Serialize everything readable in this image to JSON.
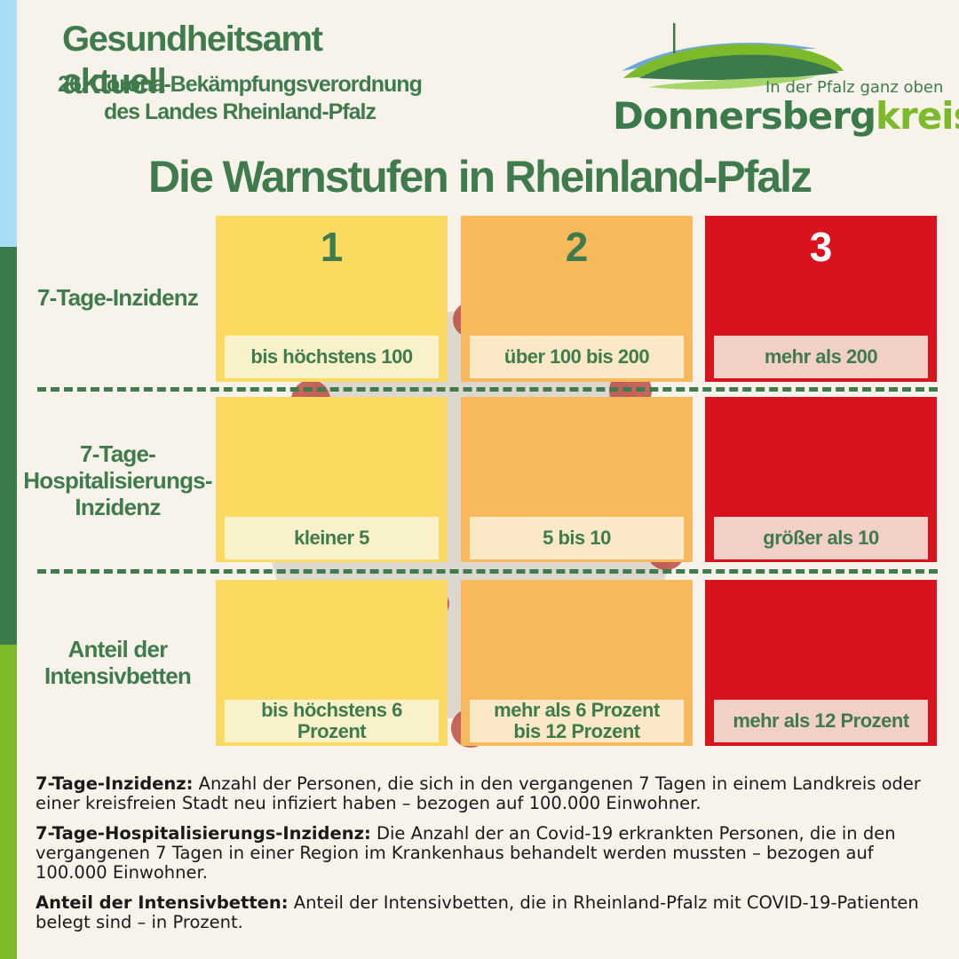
{
  "header": {
    "title": "Gesundheitsamt aktuell",
    "subtitle_line1": "26. Corona-Bekämpfungsverordnung",
    "subtitle_line2": "des Landes Rheinland-Pfalz"
  },
  "logo": {
    "slogan": "In der Pfalz ganz oben",
    "name_part1": "Donnersberg",
    "name_part2": "kreis",
    "colors": {
      "dark_green": "#3b7a4a",
      "light_green": "#7cba2c",
      "blue": "#6fa8d8"
    }
  },
  "main_title": "Die Warnstufen in Rheinland-Pfalz",
  "levels": [
    "1",
    "2",
    "3"
  ],
  "level_colors": [
    "#fadb5f",
    "#f7b95b",
    "#d9131e"
  ],
  "rows": [
    {
      "header": "7-Tage-Inzidenz",
      "values": [
        "bis höchstens 100",
        "über 100 bis 200",
        "mehr als 200"
      ]
    },
    {
      "header_lines": [
        "7-Tage-",
        "Hospitalisierungs-",
        "Inzidenz"
      ],
      "values": [
        "kleiner 5",
        "5 bis 10",
        "größer als 10"
      ]
    },
    {
      "header_lines": [
        "Anteil der",
        "Intensivbetten"
      ],
      "values": [
        "bis höchstens 6 Prozent",
        "mehr als 6 Prozent",
        "bis 12 Prozent",
        "mehr als 12 Prozent"
      ]
    }
  ],
  "definitions": [
    {
      "term": "7-Tage-Inzidenz:",
      "text": "Anzahl der Personen, die sich in den vergangenen 7 Tagen in einem Landkreis oder einer kreisfreien Stadt neu infiziert haben – bezogen auf 100.000 Einwohner."
    },
    {
      "term": "7-Tage-Hospitalisierungs-Inzidenz:",
      "text": "Die Anzahl der an Covid-19 erkrankten Personen, die in den vergangenen 7 Tagen in einer Region im Krankenhaus behandelt werden mussten – bezogen auf 100.000 Einwohner."
    },
    {
      "term": "Anteil der Intensivbetten:",
      "text": "Anteil der Intensivbetten, die in Rheinland-Pfalz mit COVID-19-Patienten belegt sind – in Prozent."
    }
  ]
}
